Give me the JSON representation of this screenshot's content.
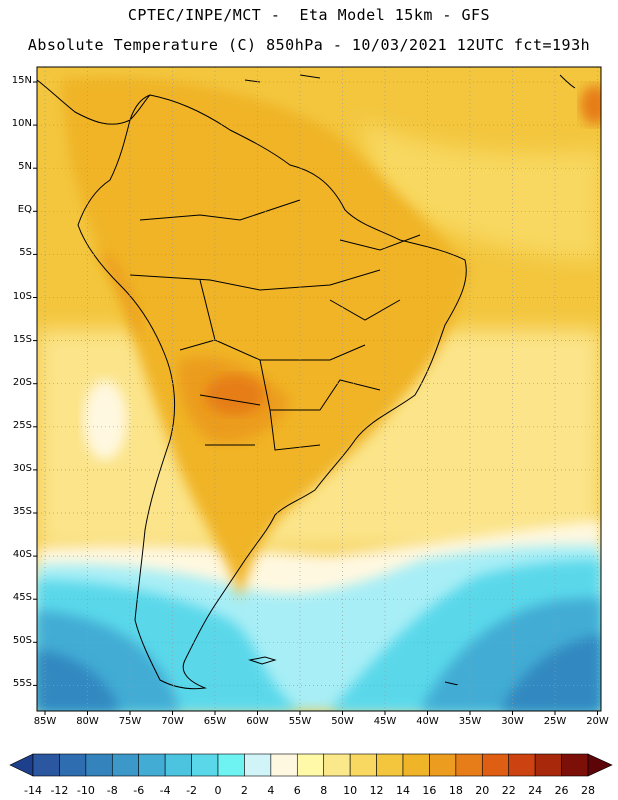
{
  "header": {
    "line1": "CPTEC/INPE/MCT -  Eta Model 15km - GFS",
    "line2": "Absolute Temperature (C) 850hPa - 10/03/2021 12UTC fct=193h"
  },
  "axes": {
    "lat_labels": [
      "15N",
      "10N",
      "5N",
      "EQ",
      "5S",
      "10S",
      "15S",
      "20S",
      "25S",
      "30S",
      "35S",
      "40S",
      "45S",
      "50S",
      "55S"
    ],
    "lon_labels": [
      "85W",
      "80W",
      "75W",
      "70W",
      "65W",
      "60W",
      "55W",
      "50W",
      "45W",
      "40W",
      "35W",
      "30W",
      "25W",
      "20W"
    ]
  },
  "colorbar": {
    "labels": [
      "-14",
      "-12",
      "-10",
      "-8",
      "-6",
      "-4",
      "-2",
      "0",
      "2",
      "4",
      "6",
      "8",
      "10",
      "12",
      "14",
      "16",
      "18",
      "20",
      "22",
      "24",
      "26",
      "28"
    ],
    "colors": [
      "#1e3f8c",
      "#2a57a0",
      "#2e6eb0",
      "#3583bd",
      "#3c98c8",
      "#42acd4",
      "#4cc4e0",
      "#5ad8ea",
      "#6ef2f2",
      "#d0f4f8",
      "#fff8e0",
      "#fff9a8",
      "#fbe88a",
      "#f8d860",
      "#f3c63e",
      "#f0b428",
      "#ec9c1e",
      "#e67d18",
      "#de5e14",
      "#cc4210",
      "#a8280c",
      "#7c1008",
      "#5c0408"
    ]
  },
  "map": {
    "colors": {
      "deep_ocean_blue": "#3288c0",
      "mid_blue": "#42acd4",
      "cyan": "#5ad8ea",
      "light_cyan": "#a8eef6",
      "pale": "#fff8e0",
      "pale_yellow": "#fff3a8",
      "yellow": "#fbe48a",
      "gold": "#f8d860",
      "amber": "#f3c63e",
      "orange_light": "#f0b428",
      "orange": "#ec9c1e",
      "dark_orange": "#e67d18",
      "red_orange": "#de5e14",
      "land_border": "#000000",
      "grid": "#9a9a9a"
    }
  }
}
